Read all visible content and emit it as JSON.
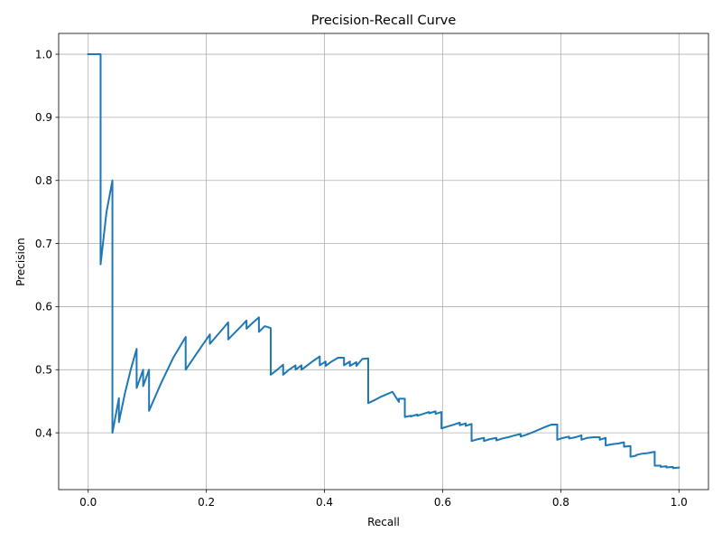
{
  "chart_data": {
    "type": "line",
    "title": "Precision-Recall Curve",
    "xlabel": "Recall",
    "ylabel": "Precision",
    "xlim": [
      -0.05,
      1.05
    ],
    "ylim": [
      0.31,
      1.033
    ],
    "xticks": [
      0.0,
      0.2,
      0.4,
      0.6,
      0.8,
      1.0
    ],
    "xtick_labels": [
      "0.0",
      "0.2",
      "0.4",
      "0.6",
      "0.8",
      "1.0"
    ],
    "yticks": [
      0.4,
      0.5,
      0.6,
      0.7,
      0.8,
      0.9,
      1.0
    ],
    "ytick_labels": [
      "0.4",
      "0.5",
      "0.6",
      "0.7",
      "0.8",
      "0.9",
      "1.0"
    ],
    "grid": true,
    "legend": null,
    "series": [
      {
        "color": "#1f77b4",
        "x": [
          0.0,
          0.021,
          0.021,
          0.031,
          0.041,
          0.041,
          0.052,
          0.052,
          0.062,
          0.072,
          0.082,
          0.082,
          0.093,
          0.093,
          0.103,
          0.103,
          0.124,
          0.144,
          0.165,
          0.165,
          0.186,
          0.206,
          0.206,
          0.227,
          0.237,
          0.237,
          0.258,
          0.268,
          0.268,
          0.278,
          0.289,
          0.289,
          0.299,
          0.309,
          0.309,
          0.32,
          0.33,
          0.33,
          0.34,
          0.351,
          0.351,
          0.361,
          0.361,
          0.371,
          0.381,
          0.392,
          0.392,
          0.402,
          0.402,
          0.412,
          0.423,
          0.433,
          0.433,
          0.443,
          0.443,
          0.454,
          0.454,
          0.464,
          0.474,
          0.474,
          0.485,
          0.495,
          0.505,
          0.515,
          0.526,
          0.526,
          0.536,
          0.536,
          0.546,
          0.546,
          0.557,
          0.557,
          0.567,
          0.577,
          0.577,
          0.588,
          0.588,
          0.598,
          0.598,
          0.608,
          0.619,
          0.629,
          0.629,
          0.639,
          0.639,
          0.649,
          0.649,
          0.66,
          0.67,
          0.67,
          0.68,
          0.691,
          0.691,
          0.701,
          0.711,
          0.722,
          0.732,
          0.732,
          0.742,
          0.753,
          0.763,
          0.773,
          0.784,
          0.794,
          0.794,
          0.804,
          0.814,
          0.814,
          0.825,
          0.835,
          0.835,
          0.845,
          0.856,
          0.866,
          0.866,
          0.876,
          0.876,
          0.887,
          0.897,
          0.907,
          0.907,
          0.918,
          0.918,
          0.928,
          0.928,
          0.938,
          0.948,
          0.959,
          0.959,
          0.969,
          0.969,
          0.979,
          0.979,
          0.99,
          0.99,
          1.0
        ],
        "y": [
          1.0,
          1.0,
          0.667,
          0.75,
          0.8,
          0.4,
          0.455,
          0.417,
          0.462,
          0.5,
          0.533,
          0.471,
          0.5,
          0.474,
          0.5,
          0.435,
          0.48,
          0.519,
          0.552,
          0.5,
          0.529,
          0.556,
          0.541,
          0.564,
          0.575,
          0.548,
          0.568,
          0.578,
          0.565,
          0.574,
          0.583,
          0.56,
          0.569,
          0.566,
          0.492,
          0.5,
          0.508,
          0.492,
          0.5,
          0.507,
          0.5,
          0.507,
          0.5,
          0.507,
          0.514,
          0.521,
          0.507,
          0.513,
          0.506,
          0.513,
          0.519,
          0.519,
          0.507,
          0.513,
          0.506,
          0.512,
          0.506,
          0.517,
          0.518,
          0.447,
          0.452,
          0.457,
          0.461,
          0.465,
          0.449,
          0.454,
          0.454,
          0.425,
          0.427,
          0.426,
          0.429,
          0.427,
          0.43,
          0.433,
          0.431,
          0.434,
          0.43,
          0.433,
          0.407,
          0.41,
          0.413,
          0.416,
          0.412,
          0.415,
          0.411,
          0.414,
          0.387,
          0.39,
          0.392,
          0.387,
          0.39,
          0.392,
          0.388,
          0.391,
          0.393,
          0.396,
          0.398,
          0.394,
          0.397,
          0.401,
          0.405,
          0.409,
          0.413,
          0.413,
          0.389,
          0.392,
          0.394,
          0.391,
          0.393,
          0.396,
          0.389,
          0.392,
          0.393,
          0.393,
          0.389,
          0.392,
          0.38,
          0.382,
          0.383,
          0.385,
          0.378,
          0.379,
          0.362,
          0.364,
          0.365,
          0.367,
          0.368,
          0.37,
          0.348,
          0.348,
          0.346,
          0.347,
          0.345,
          0.346,
          0.344,
          0.345
        ]
      }
    ]
  }
}
